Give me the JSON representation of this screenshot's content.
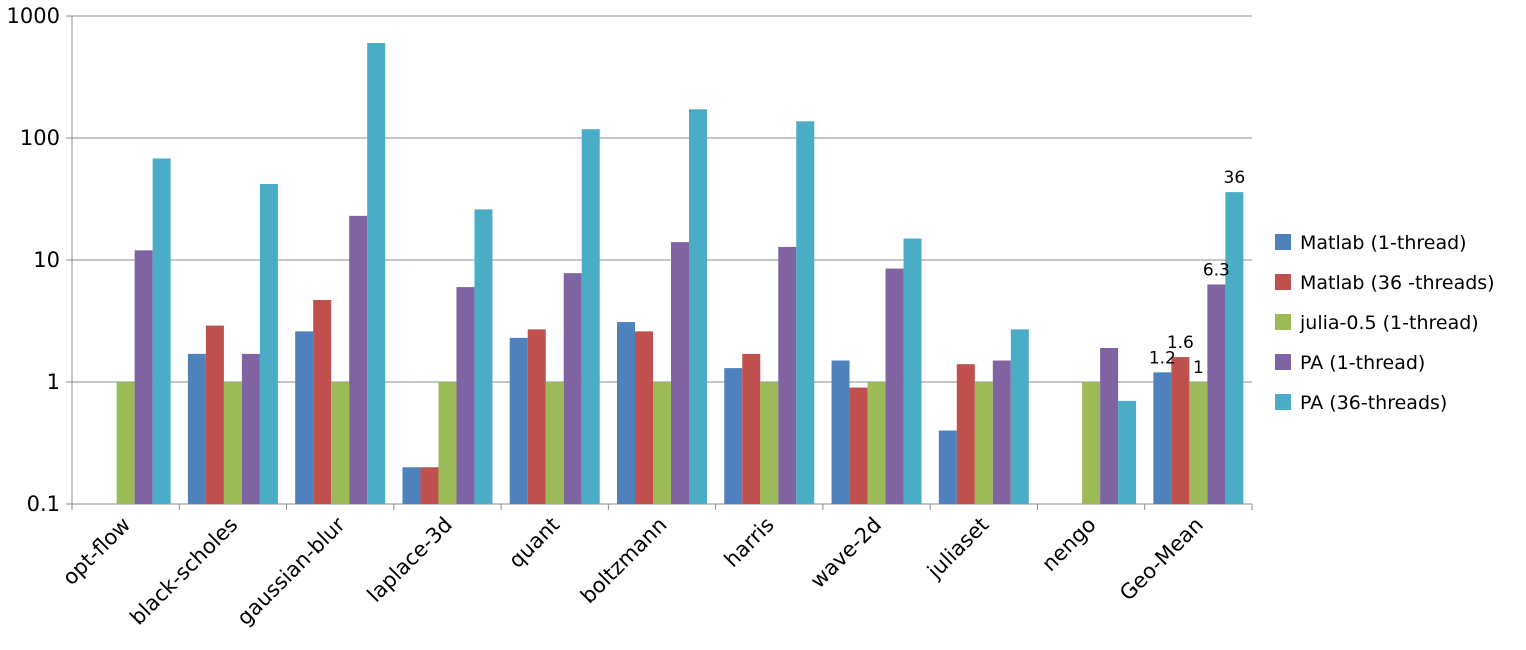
{
  "chart_data": {
    "type": "bar",
    "scale": "log",
    "ylim": [
      0.1,
      1000
    ],
    "yticks": [
      "0.1",
      "1",
      "10",
      "100",
      "1000"
    ],
    "grid": true,
    "legend_position": "right",
    "title": "",
    "xlabel": "",
    "ylabel": "",
    "categories": [
      "opt-flow",
      "black-scholes",
      "gaussian-blur",
      "laplace-3d",
      "quant",
      "boltzmann",
      "harris",
      "wave-2d",
      "juliaset",
      "nengo",
      "Geo-Mean"
    ],
    "series": [
      {
        "name": "Matlab (1-thread)",
        "color": "#4f81bd",
        "values": [
          null,
          1.7,
          2.6,
          0.2,
          2.3,
          3.1,
          1.3,
          1.5,
          0.4,
          null,
          1.2
        ]
      },
      {
        "name": "Matlab (36 -threads)",
        "color": "#c0504d",
        "values": [
          null,
          2.9,
          4.7,
          0.2,
          2.7,
          2.6,
          1.7,
          0.9,
          1.4,
          null,
          1.6
        ]
      },
      {
        "name": "julia-0.5 (1-thread)",
        "color": "#9bbb59",
        "values": [
          1,
          1,
          1,
          1,
          1,
          1,
          1,
          1,
          1,
          1,
          1
        ]
      },
      {
        "name": "PA (1-thread)",
        "color": "#8064a2",
        "values": [
          12,
          1.7,
          23,
          6,
          7.8,
          14,
          12.8,
          8.5,
          1.5,
          1.9,
          6.3
        ]
      },
      {
        "name": "PA (36-threads)",
        "color": "#4bacc6",
        "values": [
          68,
          42,
          600,
          26,
          118,
          172,
          137,
          15,
          2.7,
          0.7,
          36
        ]
      }
    ],
    "data_labels": [
      {
        "category": "Geo-Mean",
        "series": 0,
        "text": "1.2"
      },
      {
        "category": "Geo-Mean",
        "series": 1,
        "text": "1.6"
      },
      {
        "category": "Geo-Mean",
        "series": 2,
        "text": "1"
      },
      {
        "category": "Geo-Mean",
        "series": 3,
        "text": "6.3"
      },
      {
        "category": "Geo-Mean",
        "series": 4,
        "text": "36"
      }
    ]
  }
}
